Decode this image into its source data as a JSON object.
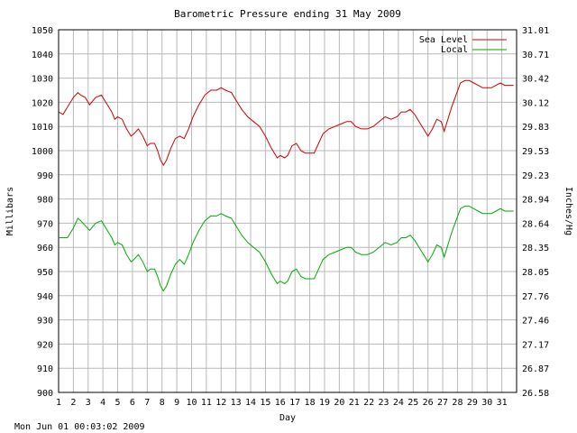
{
  "chart_data": {
    "type": "line",
    "title": "Barometric Pressure ending 31 May 2009",
    "xlabel": "Day",
    "ylabel": "Millibars",
    "y2label": "Inches/Hg",
    "timestamp": "Mon Jun 01 00:03:02 2009",
    "xlim": [
      1,
      32
    ],
    "ylim": [
      900,
      1050
    ],
    "grid": true,
    "legend_position": "top-right",
    "x_ticks": [
      "1",
      "2",
      "3",
      "4",
      "5",
      "6",
      "7",
      "8",
      "9",
      "10",
      "11",
      "12",
      "13",
      "14",
      "15",
      "16",
      "17",
      "18",
      "19",
      "20",
      "21",
      "22",
      "23",
      "24",
      "25",
      "26",
      "27",
      "28",
      "29",
      "30",
      "31"
    ],
    "y_ticks": [
      "1050",
      "1040",
      "1030",
      "1020",
      "1010",
      "1000",
      "990",
      "980",
      "970",
      "960",
      "950",
      "940",
      "930",
      "920",
      "910",
      "900"
    ],
    "y2_ticks": [
      "31.01",
      "30.71",
      "30.42",
      "30.12",
      "29.83",
      "29.53",
      "29.23",
      "28.94",
      "28.64",
      "28.35",
      "28.05",
      "27.76",
      "27.46",
      "27.17",
      "26.87",
      "26.58"
    ],
    "series": [
      {
        "name": "Sea Level",
        "color": "#cc0000",
        "x": [
          1.0,
          1.3,
          1.6,
          2.0,
          2.3,
          2.5,
          2.8,
          3.1,
          3.5,
          3.9,
          4.2,
          4.6,
          4.8,
          5.0,
          5.3,
          5.6,
          5.9,
          6.1,
          6.4,
          6.7,
          7.0,
          7.2,
          7.5,
          7.7,
          7.9,
          8.1,
          8.3,
          8.6,
          8.9,
          9.2,
          9.5,
          9.8,
          10.1,
          10.5,
          10.9,
          11.3,
          11.7,
          12.0,
          12.3,
          12.7,
          13.0,
          13.4,
          13.8,
          14.2,
          14.6,
          15.0,
          15.4,
          15.8,
          16.0,
          16.3,
          16.5,
          16.8,
          17.1,
          17.4,
          17.7,
          18.0,
          18.3,
          18.6,
          18.9,
          19.3,
          19.7,
          20.1,
          20.5,
          20.8,
          21.1,
          21.5,
          21.9,
          22.3,
          22.7,
          23.1,
          23.5,
          23.9,
          24.2,
          24.5,
          24.8,
          25.1,
          25.4,
          25.7,
          26.0,
          26.3,
          26.6,
          26.9,
          27.1,
          27.3,
          27.6,
          27.9,
          28.2,
          28.5,
          28.8,
          29.1,
          29.4,
          29.7,
          30.0,
          30.3,
          30.6,
          30.9,
          31.2,
          31.5,
          31.8
        ],
        "values": [
          1016,
          1015,
          1018,
          1022,
          1024,
          1023,
          1022,
          1019,
          1022,
          1023,
          1020,
          1016,
          1013,
          1014,
          1013,
          1009,
          1006,
          1007,
          1009,
          1006,
          1002,
          1003,
          1003,
          1000,
          996,
          994,
          996,
          1001,
          1005,
          1006,
          1005,
          1009,
          1014,
          1019,
          1023,
          1025,
          1025,
          1026,
          1025,
          1024,
          1021,
          1017,
          1014,
          1012,
          1010,
          1006,
          1001,
          997,
          998,
          997,
          998,
          1002,
          1003,
          1000,
          999,
          999,
          999,
          1003,
          1007,
          1009,
          1010,
          1011,
          1012,
          1012,
          1010,
          1009,
          1009,
          1010,
          1012,
          1014,
          1013,
          1014,
          1016,
          1016,
          1017,
          1015,
          1012,
          1009,
          1006,
          1009,
          1013,
          1012,
          1008,
          1012,
          1018,
          1023,
          1028,
          1029,
          1029,
          1028,
          1027,
          1026,
          1026,
          1026,
          1027,
          1028,
          1027,
          1027,
          1027
        ]
      },
      {
        "name": "Local",
        "color": "#00aa00",
        "x": [
          1.0,
          1.3,
          1.6,
          2.0,
          2.3,
          2.5,
          2.8,
          3.1,
          3.5,
          3.9,
          4.2,
          4.6,
          4.8,
          5.0,
          5.3,
          5.6,
          5.9,
          6.1,
          6.4,
          6.7,
          7.0,
          7.2,
          7.5,
          7.7,
          7.9,
          8.1,
          8.3,
          8.6,
          8.9,
          9.2,
          9.5,
          9.8,
          10.1,
          10.5,
          10.9,
          11.3,
          11.7,
          12.0,
          12.3,
          12.7,
          13.0,
          13.4,
          13.8,
          14.2,
          14.6,
          15.0,
          15.4,
          15.8,
          16.0,
          16.3,
          16.5,
          16.8,
          17.1,
          17.4,
          17.7,
          18.0,
          18.3,
          18.6,
          18.9,
          19.3,
          19.7,
          20.1,
          20.5,
          20.8,
          21.1,
          21.5,
          21.9,
          22.3,
          22.7,
          23.1,
          23.5,
          23.9,
          24.2,
          24.5,
          24.8,
          25.1,
          25.4,
          25.7,
          26.0,
          26.3,
          26.6,
          26.9,
          27.1,
          27.3,
          27.6,
          27.9,
          28.2,
          28.5,
          28.8,
          29.1,
          29.4,
          29.7,
          30.0,
          30.3,
          30.6,
          30.9,
          31.2,
          31.5,
          31.8
        ],
        "values": [
          964,
          964,
          964,
          968,
          972,
          971,
          969,
          967,
          970,
          971,
          968,
          964,
          961,
          962,
          961,
          957,
          954,
          955,
          957,
          954,
          950,
          951,
          951,
          948,
          944,
          942,
          944,
          949,
          953,
          955,
          953,
          957,
          962,
          967,
          971,
          973,
          973,
          974,
          973,
          972,
          969,
          965,
          962,
          960,
          958,
          954,
          949,
          945,
          946,
          945,
          946,
          950,
          951,
          948,
          947,
          947,
          947,
          951,
          955,
          957,
          958,
          959,
          960,
          960,
          958,
          957,
          957,
          958,
          960,
          962,
          961,
          962,
          964,
          964,
          965,
          963,
          960,
          957,
          954,
          957,
          961,
          960,
          956,
          960,
          966,
          971,
          976,
          977,
          977,
          976,
          975,
          974,
          974,
          974,
          975,
          976,
          975,
          975,
          975
        ]
      }
    ]
  }
}
